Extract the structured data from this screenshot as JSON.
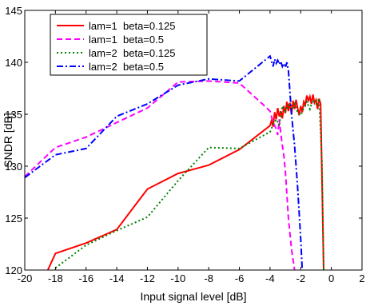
{
  "chart_data": {
    "type": "line",
    "title": "",
    "xlabel": "Input signal level [dB]",
    "ylabel": "SNDR [dB]",
    "xlim": [
      -20,
      2
    ],
    "ylim": [
      120,
      145
    ],
    "xticks": [
      -20,
      -18,
      -16,
      -14,
      -12,
      -10,
      -8,
      -6,
      -4,
      -2,
      0,
      2
    ],
    "yticks": [
      120,
      125,
      130,
      135,
      140,
      145
    ],
    "grid": false,
    "legend_position": "top-left",
    "series": [
      {
        "name": "lam=1  beta=0.125",
        "color": "#ff0000",
        "dash": "solid",
        "x": [
          -18.5,
          -18,
          -16,
          -14,
          -12,
          -10,
          -8,
          -6,
          -4,
          -3.9,
          -3.8,
          -3.7,
          -3.6,
          -3.5,
          -3.4,
          -3.3,
          -3.2,
          -3.1,
          -3.0,
          -2.9,
          -2.8,
          -2.7,
          -2.6,
          -2.5,
          -2.4,
          -2.3,
          -2.2,
          -2.1,
          -2.0,
          -1.9,
          -1.8,
          -1.7,
          -1.6,
          -1.5,
          -1.4,
          -1.3,
          -1.2,
          -1.1,
          -1.0,
          -0.9,
          -0.8,
          -0.7,
          -0.6,
          -0.5
        ],
        "y": [
          120,
          121.6,
          122.6,
          123.9,
          127.8,
          129.3,
          130.1,
          131.6,
          133.9,
          134.4,
          133.8,
          135.2,
          134.5,
          135.6,
          134.8,
          135.3,
          134.6,
          135.8,
          135.1,
          136.2,
          135.3,
          136.1,
          135.0,
          136.3,
          135.5,
          136.4,
          135.6,
          134.9,
          135.8,
          135.2,
          136.2,
          135.9,
          136.8,
          136.3,
          136.7,
          136.0,
          136.9,
          136.1,
          136.4,
          135.5,
          136.5,
          136.0,
          128.0,
          120
        ]
      },
      {
        "name": "lam=1  beta=0.5",
        "color": "#ff00ff",
        "dash": "dashed",
        "x": [
          -20,
          -18,
          -16,
          -14,
          -12,
          -10,
          -8,
          -6,
          -4.5,
          -4,
          -3.8,
          -3.6,
          -3.5,
          -3.4,
          -3.3,
          -3.2,
          -3.1,
          -3.0,
          -2.8,
          -2.6,
          -2.4
        ],
        "y": [
          129.0,
          131.8,
          132.8,
          134.2,
          135.6,
          138.1,
          138.2,
          138.0,
          136.0,
          135.3,
          134.2,
          133.6,
          133.0,
          134.5,
          133.2,
          132.0,
          131.0,
          129.5,
          125.0,
          122.0,
          120
        ]
      },
      {
        "name": "lam=2  beta=0.125",
        "color": "#008000",
        "dash": "dotted",
        "x": [
          -18,
          -16,
          -14,
          -12,
          -10,
          -8,
          -6,
          -4,
          -3.8,
          -3.6,
          -3.4,
          -3.2,
          -3.0,
          -2.8,
          -2.6,
          -2.4,
          -2.2,
          -2.0,
          -1.8,
          -1.6,
          -1.4,
          -1.2,
          -1.0,
          -0.8,
          -0.6,
          -0.5
        ],
        "y": [
          120.2,
          122.4,
          123.8,
          125.1,
          128.6,
          131.8,
          131.7,
          133.3,
          134.0,
          134.5,
          134.0,
          135.8,
          135.3,
          135.9,
          135.4,
          136.0,
          135.2,
          134.9,
          135.6,
          136.2,
          135.5,
          136.4,
          136.0,
          136.5,
          130.0,
          120
        ]
      },
      {
        "name": "lam=2  beta=0.5",
        "color": "#0000ff",
        "dash": "dashdot",
        "x": [
          -20,
          -18,
          -16,
          -14,
          -12,
          -10,
          -8,
          -6,
          -4,
          -3.9,
          -3.8,
          -3.7,
          -3.6,
          -3.5,
          -3.4,
          -3.3,
          -3.2,
          -3.1,
          -3.0,
          -2.9,
          -2.8,
          -2.6,
          -2.4,
          -2.2,
          -2.0,
          -1.9
        ],
        "y": [
          128.9,
          131.1,
          131.7,
          134.8,
          136.0,
          137.8,
          138.4,
          138.2,
          140.6,
          140.1,
          139.6,
          140.3,
          139.9,
          140.2,
          139.8,
          140.1,
          139.6,
          139.9,
          139.5,
          140.0,
          139.2,
          135.0,
          132.0,
          128.0,
          123.0,
          120
        ]
      }
    ]
  }
}
